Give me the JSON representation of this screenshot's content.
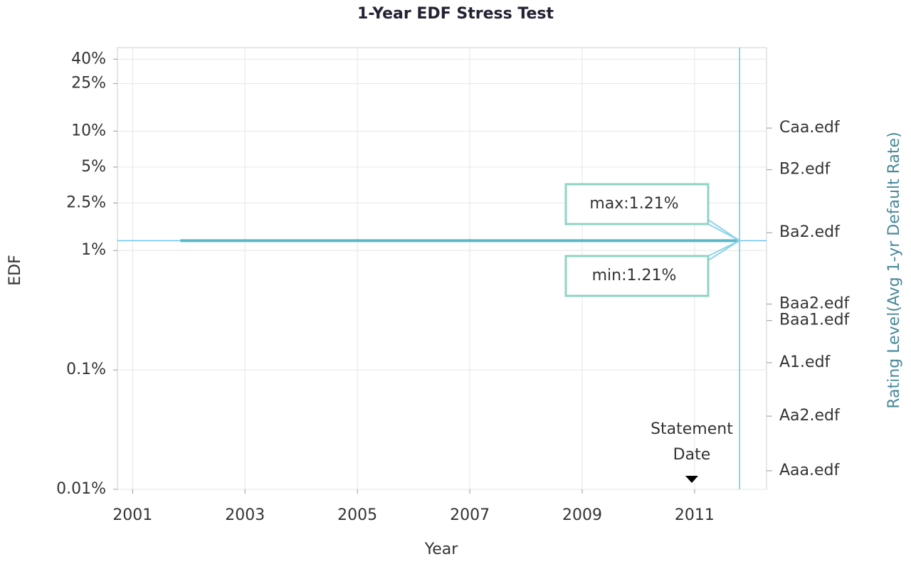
{
  "chart_data": {
    "type": "line",
    "title": "1-Year EDF Stress Test",
    "xlabel": "Year",
    "ylabel": "EDF",
    "y2label": "Rating Level(Avg 1-yr Default Rate)",
    "log_y": true,
    "grid": true,
    "xlim": [
      2000.73,
      2012.28
    ],
    "xticks": [
      2001,
      2003,
      2005,
      2007,
      2009,
      2011
    ],
    "ylim": [
      0.01,
      50
    ],
    "yticks": [
      {
        "value": 0.01,
        "label": "0.01%"
      },
      {
        "value": 0.1,
        "label": "0.1%"
      },
      {
        "value": 1,
        "label": "1%"
      },
      {
        "value": 2.5,
        "label": "2.5%"
      },
      {
        "value": 5,
        "label": "5%"
      },
      {
        "value": 10,
        "label": "10%"
      },
      {
        "value": 25,
        "label": "25%"
      },
      {
        "value": 40,
        "label": "40%"
      }
    ],
    "y2lim": [
      0.01,
      50
    ],
    "y2ticks": [
      {
        "value": 0.0143,
        "label": "Aaa.edf"
      },
      {
        "value": 0.041,
        "label": "Aa2.edf"
      },
      {
        "value": 0.115,
        "label": "A1.edf"
      },
      {
        "value": 0.259,
        "label": "Baa1.edf"
      },
      {
        "value": 0.356,
        "label": "Baa2.edf"
      },
      {
        "value": 1.41,
        "label": "Ba2.edf"
      },
      {
        "value": 4.75,
        "label": "B2.edf"
      },
      {
        "value": 10.6,
        "label": "Caa.edf"
      }
    ],
    "series": [
      {
        "name": "EDF",
        "color": "#5bb8c4",
        "x": [
          2001.85,
          2011.8
        ],
        "values": [
          1.21,
          1.21
        ]
      }
    ],
    "crosshair": {
      "x": 2011.8,
      "y": 1.21,
      "color": "#6cc3ef"
    },
    "annotations": [
      {
        "text": "max:1.21%"
      },
      {
        "text": "min:1.21%"
      }
    ],
    "statement_date": {
      "x": 2010.95,
      "label_lines": [
        "Statement",
        "Date"
      ]
    }
  }
}
